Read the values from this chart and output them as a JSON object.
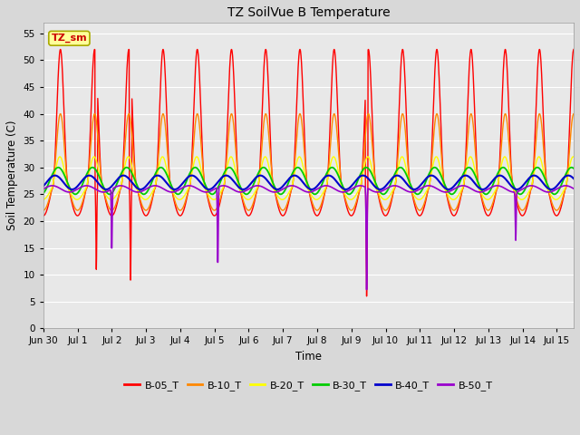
{
  "title": "TZ SoilVue B Temperature",
  "ylabel": "Soil Temperature (C)",
  "xlabel": "Time",
  "annotation_text": "TZ_sm",
  "annotation_color": "#cc0000",
  "annotation_bg": "#ffff99",
  "annotation_border": "#aaaa00",
  "ylim": [
    0,
    57
  ],
  "yticks": [
    0,
    5,
    10,
    15,
    20,
    25,
    30,
    35,
    40,
    45,
    50,
    55
  ],
  "fig_bg": "#e8e8e8",
  "plot_bg": "#e0e0e0",
  "series_colors": {
    "B-05_T": "#ff0000",
    "B-10_T": "#ff8800",
    "B-20_T": "#ffff00",
    "B-30_T": "#00cc00",
    "B-40_T": "#0000cc",
    "B-50_T": "#9900cc"
  },
  "n_days": 15.5,
  "points_per_day": 144
}
